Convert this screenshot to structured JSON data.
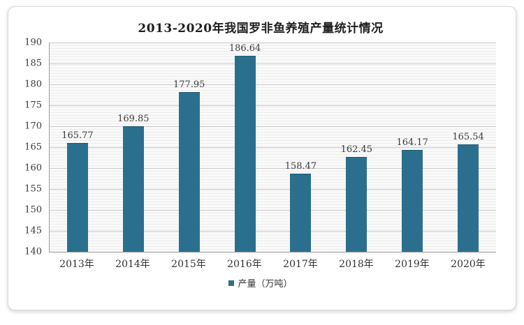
{
  "chart_data": {
    "type": "bar",
    "title": "2013-2020年我国罗非鱼养殖产量统计情况",
    "categories": [
      "2013年",
      "2014年",
      "2015年",
      "2016年",
      "2017年",
      "2018年",
      "2019年",
      "2020年"
    ],
    "values": [
      165.77,
      169.85,
      177.95,
      186.64,
      158.47,
      162.45,
      164.17,
      165.54
    ],
    "series_name": "产量（万吨）",
    "ylim": [
      140,
      190
    ],
    "ytick_step": 5,
    "bar_color": "#2b6f8e",
    "grid": true,
    "legend_position": "bottom"
  }
}
